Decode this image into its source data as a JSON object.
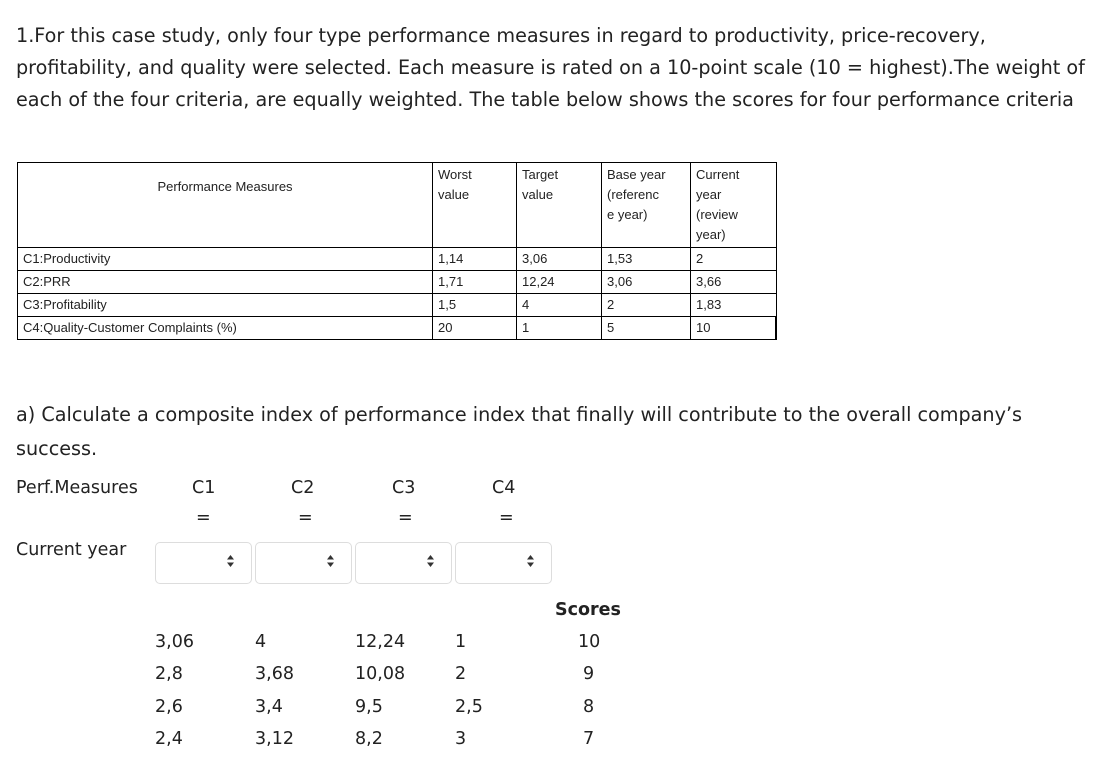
{
  "intro_text": "1.For this case study, only four type performance measures in regard to productivity, price-recovery, profitability, and quality were selected. Each measure is rated on a 10-point scale (10 = highest).The weight of each of the four criteria, are equally weighted. The table below shows the scores for four performance criteria",
  "table": {
    "header_name": "Performance Measures",
    "header_worst": [
      "Worst",
      "value"
    ],
    "header_target": [
      "Target",
      "value"
    ],
    "header_base": [
      "Base year",
      "(referenc",
      "e year)"
    ],
    "header_current": [
      "Current",
      "year",
      "(review",
      "year)"
    ],
    "rows": [
      {
        "name": "C1:Productivity",
        "worst": "1,14",
        "target": "3,06",
        "base": "1,53",
        "current": "2"
      },
      {
        "name": "C2:PRR",
        "worst": "1,71",
        "target": "12,24",
        "base": "3,06",
        "current": "3,66"
      },
      {
        "name": "C3:Profitability",
        "worst": "1,5",
        "target": "4",
        "base": "2",
        "current": "1,83"
      },
      {
        "name": "C4:Quality-Customer Complaints (%)",
        "worst": "20",
        "target": "1",
        "base": "5",
        "current": "10"
      }
    ]
  },
  "question_text": "a) Calculate a composite index of performance index that finally will contribute to the overall company’s success.",
  "answer_grid": {
    "perf_label": "Perf.Measures",
    "columns": [
      "C1",
      "C2",
      "C3",
      "C4"
    ],
    "eq_sign": "=",
    "current_label": "Current year",
    "select_arrow_icon": "updown-arrow-icon"
  },
  "options": {
    "scores_header": "Scores",
    "rows": [
      [
        "3,06",
        "4",
        "12,24",
        "1",
        "10"
      ],
      [
        "2,8",
        "3,68",
        "10,08",
        "2",
        "9"
      ],
      [
        "2,6",
        "3,4",
        "9,5",
        "2,5",
        "8"
      ],
      [
        "2,4",
        "3,12",
        "8,2",
        "3",
        "7"
      ]
    ]
  }
}
